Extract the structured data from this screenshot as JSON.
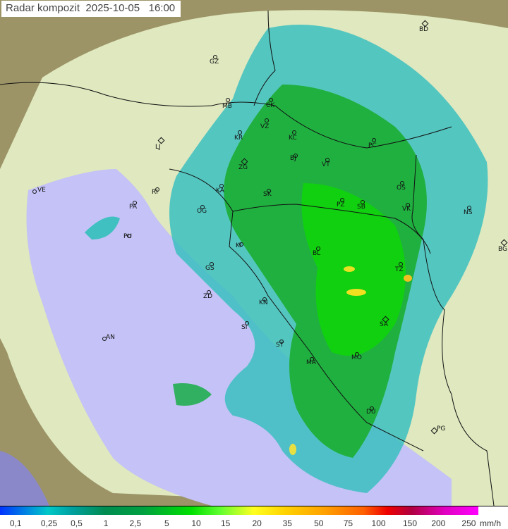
{
  "title": "Radar kompozit  2025-10-05   16:00",
  "cities": [
    {
      "code": "BD",
      "marker": "diamond"
    },
    {
      "code": "GZ",
      "marker": "circle"
    },
    {
      "code": "MB",
      "marker": "circle"
    },
    {
      "code": "CK",
      "marker": "circle"
    },
    {
      "code": "VZ",
      "marker": "circle"
    },
    {
      "code": "KR",
      "marker": "circle"
    },
    {
      "code": "KC",
      "marker": "circle"
    },
    {
      "code": "LJ",
      "marker": "diamond"
    },
    {
      "code": "PC",
      "marker": "circle"
    },
    {
      "code": "ZG",
      "marker": "diamond"
    },
    {
      "code": "BJ",
      "marker": "circle"
    },
    {
      "code": "VT",
      "marker": "circle"
    },
    {
      "code": "VE",
      "marker": "circle"
    },
    {
      "code": "RI",
      "marker": "circle"
    },
    {
      "code": "KA",
      "marker": "circle"
    },
    {
      "code": "SK",
      "marker": "circle"
    },
    {
      "code": "OS",
      "marker": "circle"
    },
    {
      "code": "PA",
      "marker": "circle"
    },
    {
      "code": "PZ",
      "marker": "circle"
    },
    {
      "code": "SB",
      "marker": "circle"
    },
    {
      "code": "VK",
      "marker": "circle"
    },
    {
      "code": "NS",
      "marker": "circle"
    },
    {
      "code": "PU",
      "marker": "circle"
    },
    {
      "code": "OG",
      "marker": "circle"
    },
    {
      "code": "BG",
      "marker": "diamond"
    },
    {
      "code": "KI",
      "marker": "circle"
    },
    {
      "code": "BL",
      "marker": "circle"
    },
    {
      "code": "GS",
      "marker": "circle"
    },
    {
      "code": "TZ",
      "marker": "circle"
    },
    {
      "code": "ZD",
      "marker": "circle"
    },
    {
      "code": "KN",
      "marker": "circle"
    },
    {
      "code": "SA",
      "marker": "diamond"
    },
    {
      "code": "SI",
      "marker": "circle"
    },
    {
      "code": "AN",
      "marker": "circle"
    },
    {
      "code": "ST",
      "marker": "circle"
    },
    {
      "code": "MO",
      "marker": "circle"
    },
    {
      "code": "MA",
      "marker": "circle"
    },
    {
      "code": "DU",
      "marker": "circle"
    },
    {
      "code": "PG",
      "marker": "diamond"
    }
  ],
  "legend": {
    "ticks": [
      "0,1",
      "0,25",
      "0,5",
      "1",
      "2,5",
      "5",
      "10",
      "15",
      "20",
      "35",
      "50",
      "75",
      "100",
      "150",
      "200",
      "250"
    ],
    "unit": "mm/h",
    "colors": {
      "low": "#0033ff",
      "mid": "#00a040",
      "high": "#ffff20",
      "max": "#ff00ff"
    }
  },
  "colors": {
    "sea": "#c0c0f8",
    "land_in_range": "#e8f0c8",
    "land_out_of_range": "#8a8a5a"
  }
}
